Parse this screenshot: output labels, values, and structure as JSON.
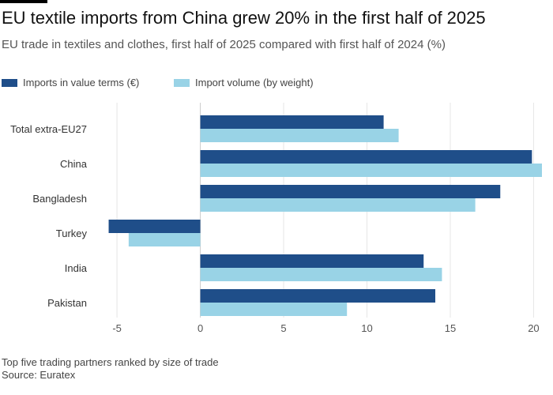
{
  "title": "EU textile imports from China grew 20% in the first half of 2025",
  "subtitle": "EU trade in textiles and clothes, first half of 2025 compared with first half of 2024 (%)",
  "legend": [
    {
      "label": "Imports in value terms (€)",
      "color": "#1f4e89"
    },
    {
      "label": "Import volume (by weight)",
      "color": "#99d3e6"
    }
  ],
  "note": "Top five trading partners ranked by size of trade",
  "source": "Source: Euratex",
  "chart_data": {
    "type": "bar",
    "orientation": "horizontal",
    "categories": [
      "Total extra-EU27",
      "China",
      "Bangladesh",
      "Turkey",
      "India",
      "Pakistan"
    ],
    "series": [
      {
        "name": "Imports in value terms (€)",
        "color": "#1f4e89",
        "values": [
          11.0,
          19.9,
          18.0,
          -5.5,
          13.4,
          14.1
        ]
      },
      {
        "name": "Import volume (by weight)",
        "color": "#99d3e6",
        "values": [
          11.9,
          20.5,
          16.5,
          -4.3,
          14.5,
          8.8
        ]
      }
    ],
    "xlim": [
      -6,
      20.5
    ],
    "xticks": [
      -5,
      0,
      5,
      10,
      15,
      20
    ],
    "grid": true,
    "legend_position": "top-left"
  }
}
